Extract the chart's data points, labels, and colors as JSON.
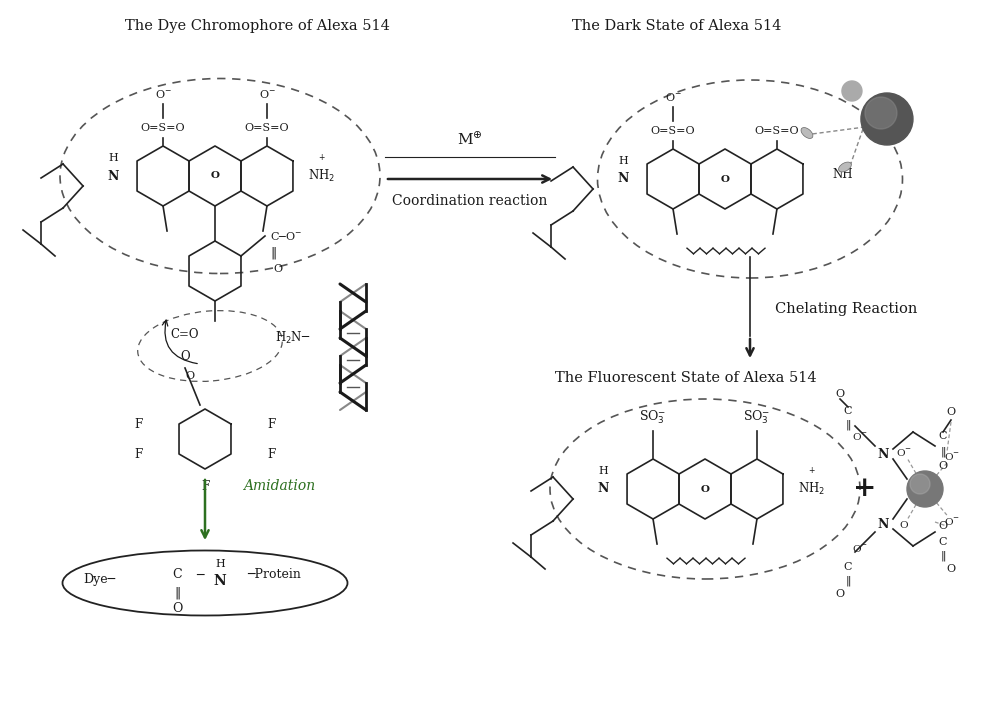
{
  "title1": "The Dye Chromophore of Alexa 514",
  "title2": "The Dark State of Alexa 514",
  "title3": "The Fluorescent State of Alexa 514",
  "label_coord_rxn": "Coordination reaction",
  "label_chelate": "Chelating Reaction",
  "label_amidation": "Amidation",
  "bg_color": "#ffffff",
  "text_color": "#1a1a1a",
  "dark_green": "#2d7020",
  "line_color": "#222222",
  "dashed_color": "#555555",
  "metal_color": "#666666"
}
